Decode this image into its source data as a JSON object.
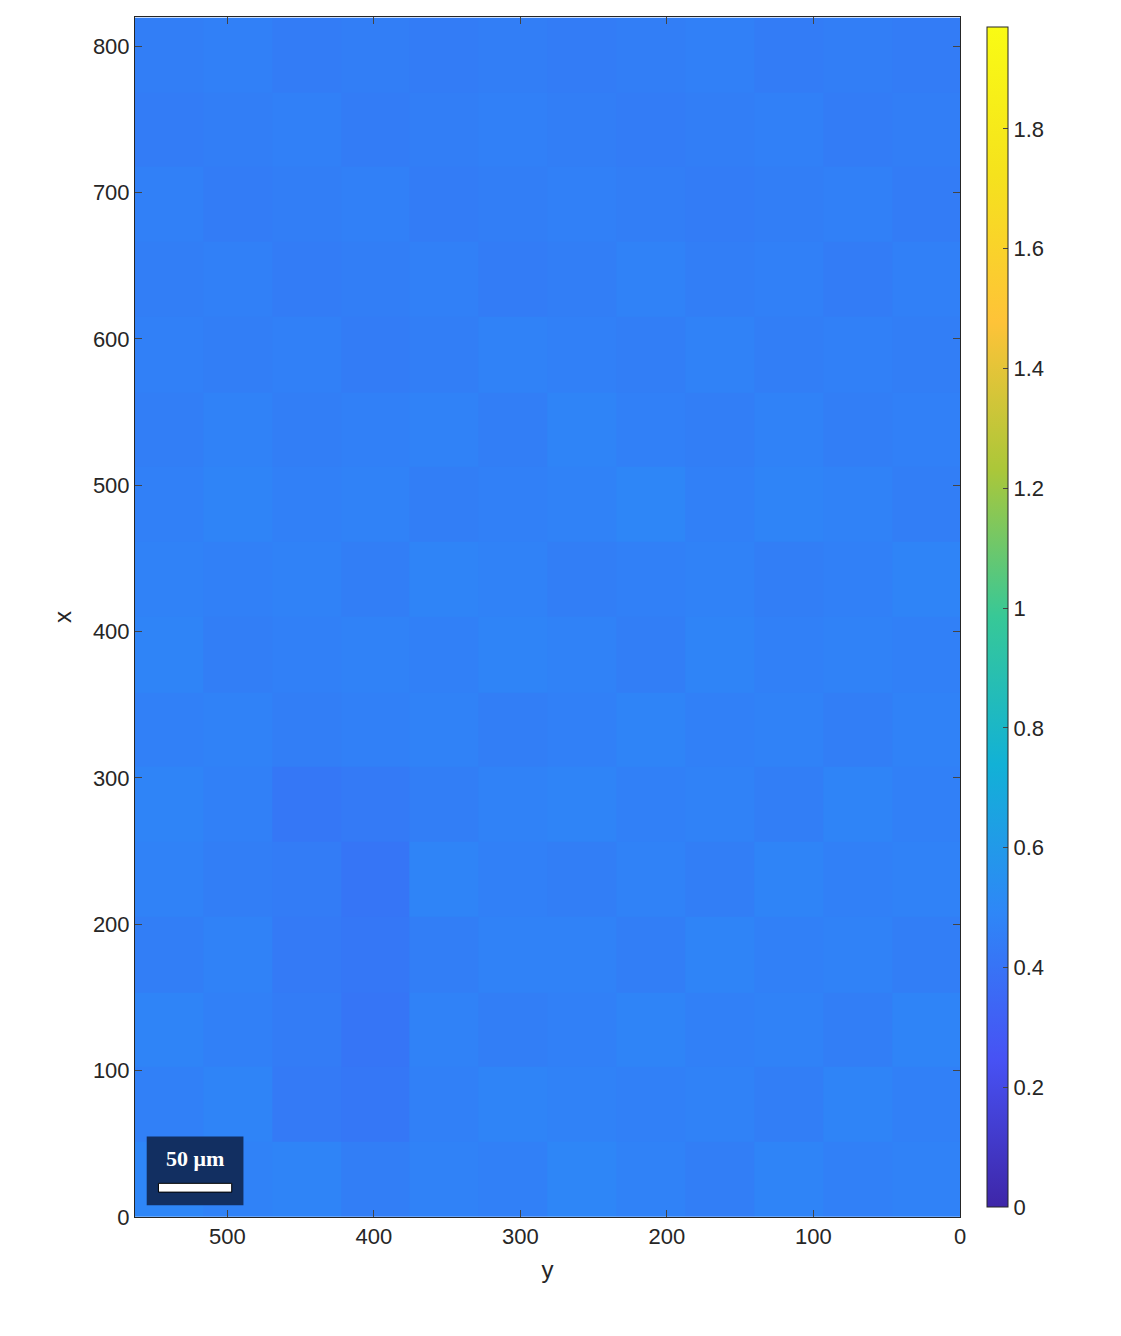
{
  "chart_data": {
    "type": "heatmap",
    "x_title": "y",
    "y_title": "x",
    "xlim": [
      563,
      0
    ],
    "xticks": [
      0,
      100,
      200,
      300,
      400,
      500
    ],
    "ylim": [
      0,
      820
    ],
    "yticks": [
      0,
      100,
      200,
      300,
      400,
      500,
      600,
      700,
      800
    ],
    "x": [
      23,
      70,
      117,
      164,
      211,
      258,
      305,
      352,
      399,
      446,
      493,
      540
    ],
    "y": [
      26,
      77,
      128,
      179,
      231,
      282,
      333,
      384,
      436,
      487,
      538,
      589,
      641,
      692,
      743,
      794
    ],
    "cells": [
      [
        0.47,
        0.46,
        0.48,
        0.45,
        0.47,
        0.49,
        0.46,
        0.47,
        0.45,
        0.48,
        0.47,
        0.49
      ],
      [
        0.46,
        0.48,
        0.45,
        0.47,
        0.46,
        0.47,
        0.48,
        0.46,
        0.42,
        0.43,
        0.48,
        0.46
      ],
      [
        0.48,
        0.45,
        0.47,
        0.46,
        0.48,
        0.46,
        0.45,
        0.47,
        0.41,
        0.44,
        0.46,
        0.48
      ],
      [
        0.45,
        0.47,
        0.46,
        0.48,
        0.45,
        0.47,
        0.47,
        0.45,
        0.42,
        0.43,
        0.47,
        0.45
      ],
      [
        0.47,
        0.46,
        0.48,
        0.45,
        0.47,
        0.45,
        0.46,
        0.48,
        0.41,
        0.44,
        0.45,
        0.47
      ],
      [
        0.46,
        0.48,
        0.45,
        0.47,
        0.46,
        0.48,
        0.47,
        0.45,
        0.43,
        0.42,
        0.46,
        0.48
      ],
      [
        0.47,
        0.45,
        0.47,
        0.46,
        0.48,
        0.46,
        0.45,
        0.47,
        0.46,
        0.45,
        0.47,
        0.46
      ],
      [
        0.46,
        0.47,
        0.46,
        0.48,
        0.45,
        0.47,
        0.48,
        0.46,
        0.47,
        0.46,
        0.45,
        0.48
      ],
      [
        0.48,
        0.46,
        0.45,
        0.47,
        0.46,
        0.45,
        0.47,
        0.48,
        0.45,
        0.47,
        0.46,
        0.47
      ],
      [
        0.45,
        0.47,
        0.48,
        0.46,
        0.49,
        0.47,
        0.46,
        0.45,
        0.47,
        0.46,
        0.48,
        0.46
      ],
      [
        0.46,
        0.45,
        0.47,
        0.45,
        0.46,
        0.48,
        0.45,
        0.47,
        0.46,
        0.45,
        0.47,
        0.45
      ],
      [
        0.45,
        0.46,
        0.45,
        0.47,
        0.45,
        0.46,
        0.47,
        0.45,
        0.44,
        0.46,
        0.45,
        0.46
      ],
      [
        0.46,
        0.44,
        0.46,
        0.45,
        0.47,
        0.45,
        0.44,
        0.46,
        0.45,
        0.44,
        0.46,
        0.45
      ],
      [
        0.44,
        0.46,
        0.45,
        0.44,
        0.45,
        0.46,
        0.45,
        0.44,
        0.46,
        0.45,
        0.44,
        0.46
      ],
      [
        0.45,
        0.44,
        0.46,
        0.45,
        0.44,
        0.45,
        0.46,
        0.45,
        0.44,
        0.46,
        0.45,
        0.44
      ],
      [
        0.44,
        0.45,
        0.44,
        0.46,
        0.45,
        0.44,
        0.45,
        0.44,
        0.45,
        0.44,
        0.46,
        0.45
      ]
    ],
    "colorbar_range": [
      0,
      1.97
    ],
    "colorbar_ticks": [
      0,
      0.2,
      0.4,
      0.6,
      0.8,
      1,
      1.2,
      1.4,
      1.6,
      1.8
    ],
    "scale_bar": {
      "label": "50 μm",
      "length": 50
    }
  }
}
